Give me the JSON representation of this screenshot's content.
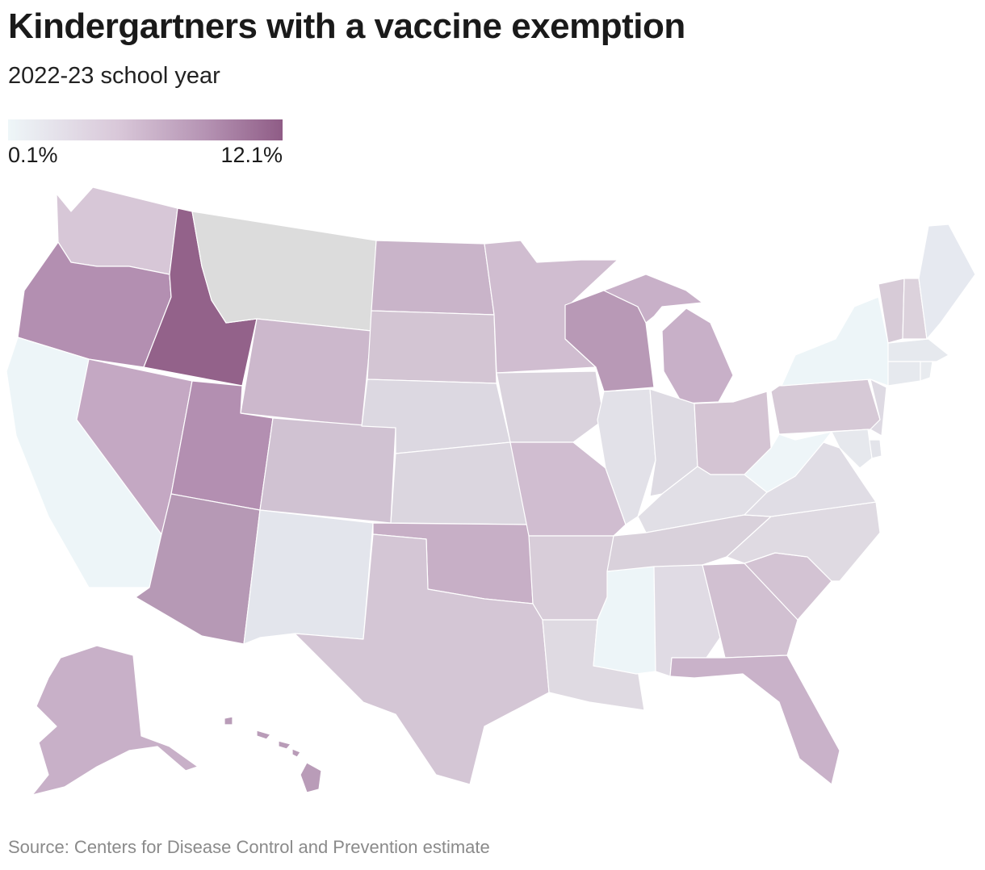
{
  "header": {
    "title": "Kindergartners with a vaccine exemption",
    "subtitle": "2022-23 school year"
  },
  "legend": {
    "min_label": "0.1%",
    "max_label": "12.1%",
    "colors": [
      "#eef6f8",
      "#d9c8d9",
      "#b593b3",
      "#8f5c86"
    ]
  },
  "footer": {
    "source": "Source: Centers for Disease Control and Prevention estimate"
  },
  "no_data_color": "#dcdcdc",
  "state_fill": {
    "WA": "#d7c7d7",
    "OR": "#b38fb1",
    "CA": "#edf5f8",
    "ID": "#93628a",
    "NV": "#c4a8c3",
    "MT": "#dcdcdc",
    "WY": "#ccb8cc",
    "UT": "#b38fb1",
    "AZ": "#b699b5",
    "CO": "#d0c2d2",
    "NM": "#e3e5ec",
    "ND": "#c9b4c9",
    "SD": "#d3c5d3",
    "NE": "#dcd8e1",
    "KS": "#dbd6df",
    "OK": "#c7afc6",
    "TX": "#d4c6d5",
    "MN": "#d0bdd0",
    "IA": "#dad3dd",
    "MO": "#d0bdd0",
    "AR": "#d8cdd9",
    "LA": "#dfdae2",
    "WI": "#b899b6",
    "IL": "#e2e1e8",
    "MI": "#c8b0c8",
    "IN": "#dedbe3",
    "OH": "#d4c4d3",
    "KY": "#e1dfe6",
    "TN": "#d9d1db",
    "MS": "#edf5f8",
    "AL": "#e0dbe4",
    "GA": "#d1c0d1",
    "FL": "#c9b2c9",
    "SC": "#d3c3d3",
    "NC": "#dfdae2",
    "VA": "#e0dde5",
    "WV": "#eef5f8",
    "PA": "#d6c9d6",
    "NY": "#edf5f8",
    "VT": "#d7cbd7",
    "NH": "#dcd2dc",
    "ME": "#e6e9f0",
    "MA": "#e6e9ee",
    "CT": "#e6e9ee",
    "RI": "#e8ebef",
    "NJ": "#dedae3",
    "DE": "#e3e4ea",
    "MD": "#e6e8ed",
    "AK": "#c8b0c8",
    "HI": "#b99cb8"
  }
}
